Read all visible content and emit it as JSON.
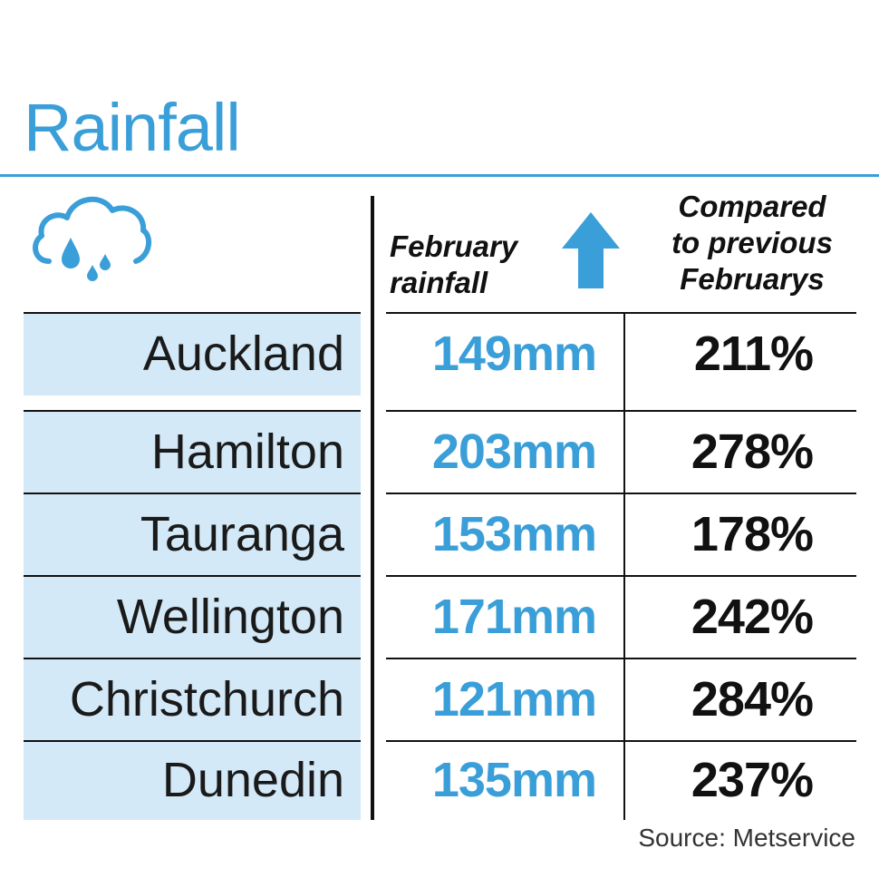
{
  "title": "Rainfall",
  "columns": {
    "rainfall": "February rainfall",
    "rainfall_lines": [
      "February",
      "rainfall"
    ],
    "compared_lines": [
      "Compared",
      "to previous",
      "Februarys"
    ]
  },
  "rows": [
    {
      "city": "Auckland",
      "rainfall": "149mm",
      "compared": "211%"
    },
    {
      "city": "Hamilton",
      "rainfall": "203mm",
      "compared": "278%"
    },
    {
      "city": "Tauranga",
      "rainfall": "153mm",
      "compared": "178%"
    },
    {
      "city": "Wellington",
      "rainfall": "171mm",
      "compared": "242%"
    },
    {
      "city": "Christchurch",
      "rainfall": "121mm",
      "compared": "284%"
    },
    {
      "city": "Dunedin",
      "rainfall": "135mm",
      "compared": "237%"
    }
  ],
  "source": "Source: Metservice",
  "icons": {
    "weather": "rain-cloud-icon",
    "arrow": "arrow-up-icon"
  },
  "colors": {
    "accent": "#3a9fd8",
    "row_fill": "#d3e9f7",
    "text": "#111111"
  },
  "chart_data": {
    "type": "table",
    "title": "Rainfall",
    "columns": [
      "",
      "February rainfall",
      "Compared to previous Februarys"
    ],
    "categories": [
      "Auckland",
      "Hamilton",
      "Tauranga",
      "Wellington",
      "Christchurch",
      "Dunedin"
    ],
    "series": [
      {
        "name": "February rainfall",
        "unit": "mm",
        "values": [
          149,
          203,
          153,
          171,
          121,
          135
        ]
      },
      {
        "name": "Compared to previous Februarys",
        "unit": "%",
        "values": [
          211,
          278,
          178,
          242,
          284,
          237
        ]
      }
    ],
    "source": "Source: Metservice"
  }
}
